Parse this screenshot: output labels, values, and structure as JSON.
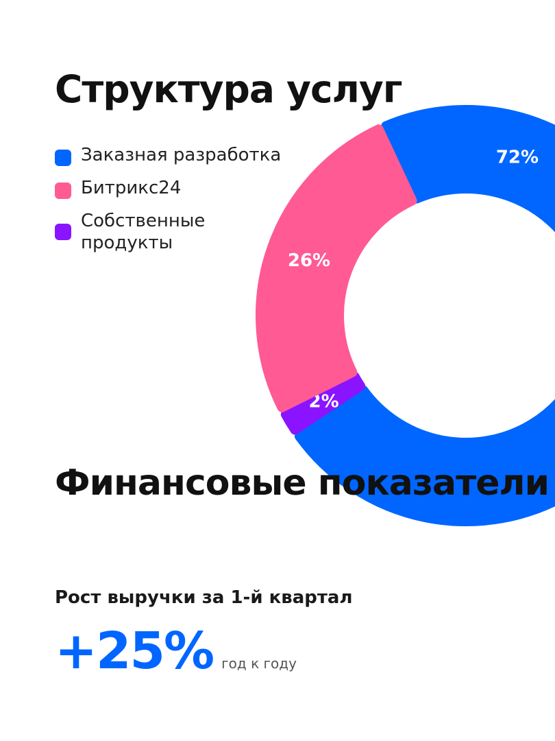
{
  "colors": {
    "blue": "#0066ff",
    "pink": "#ff5a94",
    "purple": "#8a14ff",
    "text": "#111111"
  },
  "header": {
    "title": "Структура услуг"
  },
  "legend": [
    {
      "label": "Заказная разработка",
      "color": "#0066ff"
    },
    {
      "label": "Битрикс24",
      "color": "#ff5a94"
    },
    {
      "label": "Собственные продукты",
      "color": "#8a14ff"
    }
  ],
  "chart_data": {
    "type": "pie",
    "title": "Структура услуг",
    "categories": [
      "Заказная разработка",
      "Битрикс24",
      "Собственные продукты"
    ],
    "values": [
      72,
      26,
      2
    ],
    "value_labels": [
      "72%",
      "26%",
      "2%"
    ],
    "colors": [
      "#0066ff",
      "#ff5a94",
      "#8a14ff"
    ],
    "donut": true,
    "legend_position": "top-left"
  },
  "financials": {
    "title": "Финансовые показатели",
    "subtitle": "Рост выручки за 1-й квартал",
    "growth_value": "+25%",
    "growth_note": "год к году"
  }
}
